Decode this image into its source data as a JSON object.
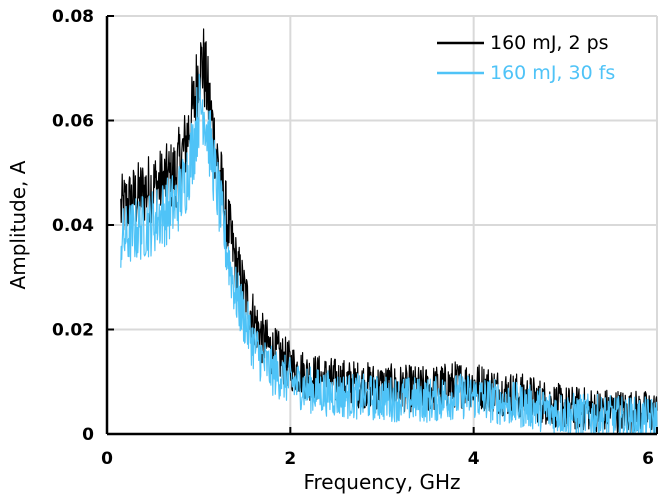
{
  "chart_data": {
    "type": "line",
    "xlabel": "Frequency, GHz",
    "ylabel": "Amplitude, A",
    "xlim": [
      0,
      6
    ],
    "ylim": [
      0,
      0.08
    ],
    "xticks": [
      0,
      2,
      4,
      6
    ],
    "xtick_labels": [
      "0",
      "2",
      "4",
      "6"
    ],
    "yticks": [
      0,
      0.02,
      0.04,
      0.06,
      0.08
    ],
    "ytick_labels": [
      "0",
      "0.02",
      "0.04",
      "0.06",
      "0.08"
    ],
    "grid": true,
    "legend_position": "top-right",
    "series": [
      {
        "name": "160 mJ, 2 ps",
        "color": "#000000",
        "x": [
          0.15,
          0.3,
          0.45,
          0.6,
          0.75,
          0.85,
          0.95,
          1.0,
          1.05,
          1.1,
          1.2,
          1.3,
          1.4,
          1.5,
          1.6,
          1.7,
          1.8,
          2.0,
          2.2,
          2.5,
          3.0,
          3.5,
          3.8,
          4.0,
          4.3,
          4.6,
          5.0,
          5.5,
          6.0
        ],
        "y": [
          0.043,
          0.045,
          0.047,
          0.048,
          0.05,
          0.055,
          0.063,
          0.07,
          0.071,
          0.065,
          0.053,
          0.042,
          0.033,
          0.027,
          0.022,
          0.018,
          0.016,
          0.013,
          0.011,
          0.01,
          0.009,
          0.0085,
          0.0095,
          0.0095,
          0.008,
          0.007,
          0.005,
          0.0045,
          0.004
        ]
      },
      {
        "name": "160 mJ, 30 fs",
        "color": "#4fc3f7",
        "x": [
          0.15,
          0.3,
          0.45,
          0.6,
          0.75,
          0.85,
          0.95,
          1.0,
          1.05,
          1.1,
          1.2,
          1.3,
          1.4,
          1.5,
          1.6,
          1.7,
          1.8,
          2.0,
          2.2,
          2.5,
          3.0,
          3.5,
          3.8,
          4.0,
          4.3,
          4.6,
          5.0,
          5.5,
          6.0
        ],
        "y": [
          0.037,
          0.039,
          0.04,
          0.042,
          0.044,
          0.048,
          0.056,
          0.062,
          0.063,
          0.058,
          0.047,
          0.036,
          0.027,
          0.022,
          0.017,
          0.014,
          0.012,
          0.01,
          0.0085,
          0.0075,
          0.0068,
          0.0065,
          0.0072,
          0.0072,
          0.006,
          0.0052,
          0.0038,
          0.0032,
          0.0028
        ]
      }
    ]
  }
}
